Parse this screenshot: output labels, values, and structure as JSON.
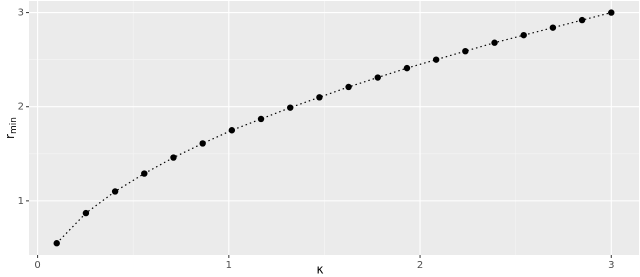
{
  "chart_data": {
    "type": "line",
    "x_label": "κ",
    "y_label": "r",
    "y_label_sub": "min",
    "x": [
      0.1,
      0.2526,
      0.4053,
      0.5579,
      0.7105,
      0.8632,
      1.0158,
      1.1684,
      1.3211,
      1.4737,
      1.6263,
      1.7789,
      1.9316,
      2.0842,
      2.2368,
      2.3895,
      2.5421,
      2.6947,
      2.8474,
      3.0
    ],
    "series": [
      {
        "color": "#000000",
        "values": [
          0.55,
          0.87,
          1.1,
          1.29,
          1.46,
          1.61,
          1.75,
          1.87,
          1.99,
          2.1,
          2.21,
          2.31,
          2.41,
          2.5,
          2.59,
          2.68,
          2.76,
          2.84,
          2.92,
          3.0
        ]
      }
    ],
    "xlim": [
      -0.045,
      3.145
    ],
    "ylim": [
      0.425,
      3.123
    ],
    "xticks": [
      0,
      1,
      2,
      3
    ],
    "yticks": [
      1,
      2,
      3
    ],
    "grid": true
  }
}
